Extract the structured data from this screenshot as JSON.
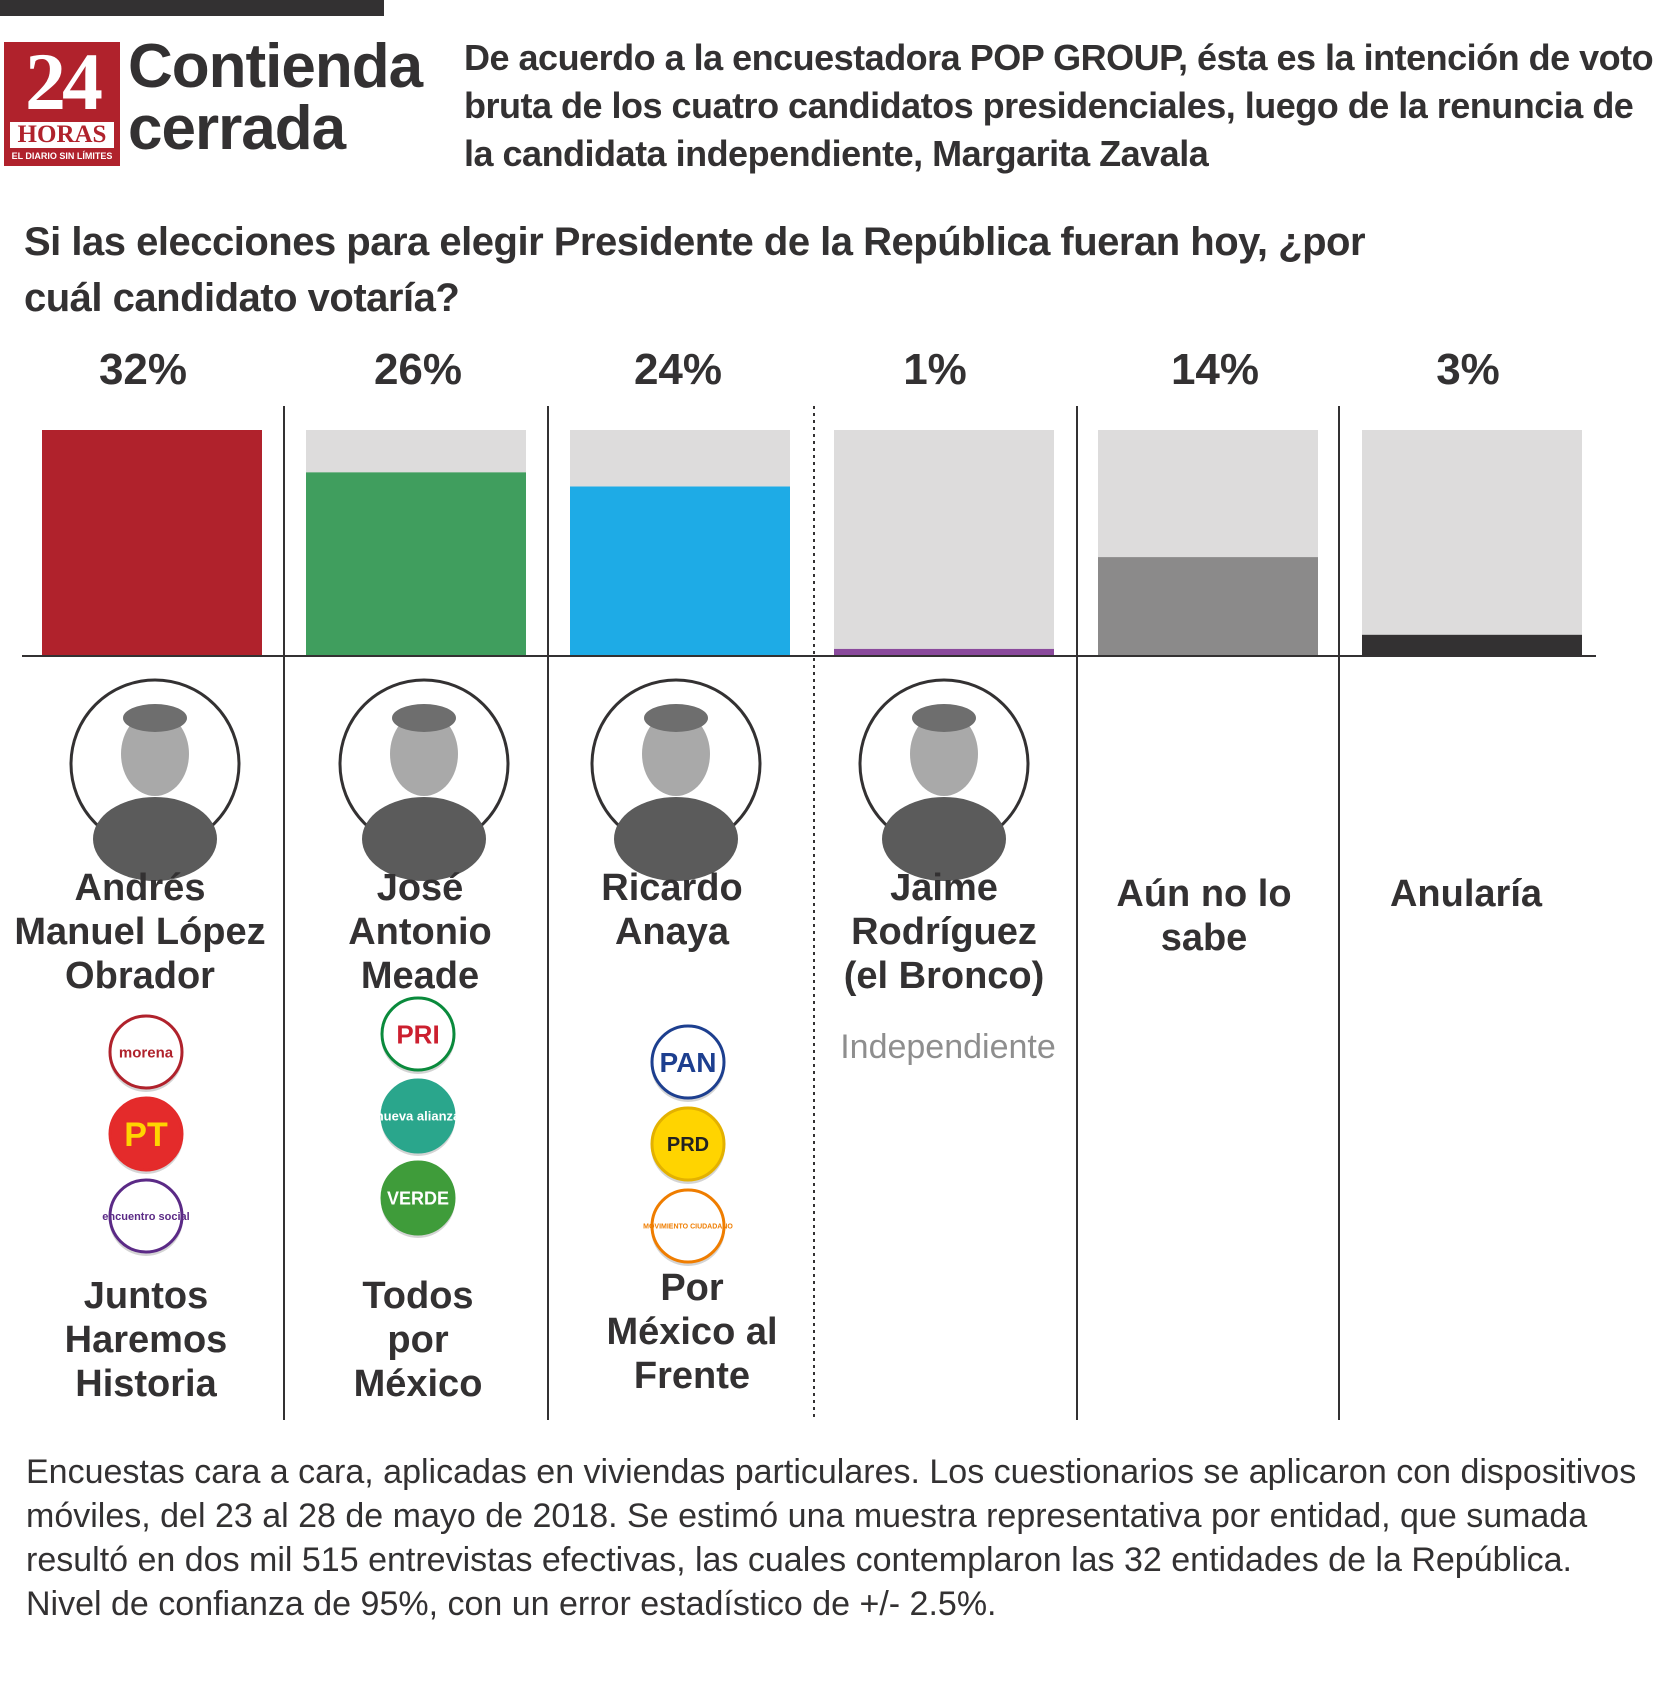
{
  "header": {
    "logo_number": "24",
    "logo_word": "HORAS",
    "logo_tagline": "EL DIARIO SIN LÍMITES",
    "title": "Contienda cerrada",
    "subtitle": "De acuerdo a la encuestadora POP GROUP, ésta es la intención de voto bruta de los cuatro candidatos presidenciales, luego de la renuncia de la candidata independiente, Margarita Zavala",
    "question": "Si las elecciones para elegir Presidente de la República fueran hoy, ¿por cuál candidato votaría?"
  },
  "chart_data": {
    "type": "bar",
    "unit": "%",
    "ylim": [
      0,
      32
    ],
    "grid": false,
    "categories": [
      "Andrés Manuel López Obrador",
      "José Antonio Meade",
      "Ricardo Anaya",
      "Jaime Rodríguez (el Bronco)",
      "Aún no lo sabe",
      "Anularía"
    ],
    "values": [
      32,
      26,
      24,
      1,
      14,
      3
    ],
    "labels": [
      "32%",
      "26%",
      "24%",
      "1%",
      "14%",
      "3%"
    ],
    "colors": [
      "#b0222c",
      "#409e5e",
      "#1eabe6",
      "#8a4a9c",
      "#8b8a8a",
      "#333132"
    ],
    "track_color": "#dddcdc",
    "name_lines": [
      [
        "Andrés",
        "Manuel López",
        "Obrador"
      ],
      [
        "José",
        "Antonio",
        "Meade"
      ],
      [
        "Ricardo",
        "Anaya"
      ],
      [
        "Jaime",
        "Rodríguez",
        "(el Bronco)"
      ],
      [
        "Aún no lo",
        "sabe"
      ],
      [
        "Anularía"
      ]
    ],
    "independent_label": "Independiente",
    "coalitions": [
      {
        "lines": [
          "Juntos",
          "Haremos",
          "Historia"
        ],
        "parties": [
          "morena",
          "PT",
          "encuentro social"
        ]
      },
      {
        "lines": [
          "Todos",
          "por",
          "México"
        ],
        "parties": [
          "PRI",
          "nueva alianza",
          "VERDE"
        ]
      },
      {
        "lines": [
          "Por",
          "México al",
          "Frente"
        ],
        "parties": [
          "PAN",
          "PRD",
          "MOVIMIENTO CIUDADANO"
        ]
      }
    ],
    "photo_icons": [
      "portrait-icon",
      "portrait-icon",
      "portrait-icon",
      "portrait-icon"
    ]
  },
  "footnote": "Encuestas cara a cara, aplicadas en viviendas particulares. Los cuestionarios se aplicaron con dispositivos móviles, del 23 al 28 de mayo de 2018. Se estimó una muestra representativa por entidad, que sumada resultó en dos mil 515 entrevistas efectivas, las cuales contemplaron las 32 entidades de la República. Nivel de confianza de 95%, con un error estadístico de +/- 2.5%."
}
